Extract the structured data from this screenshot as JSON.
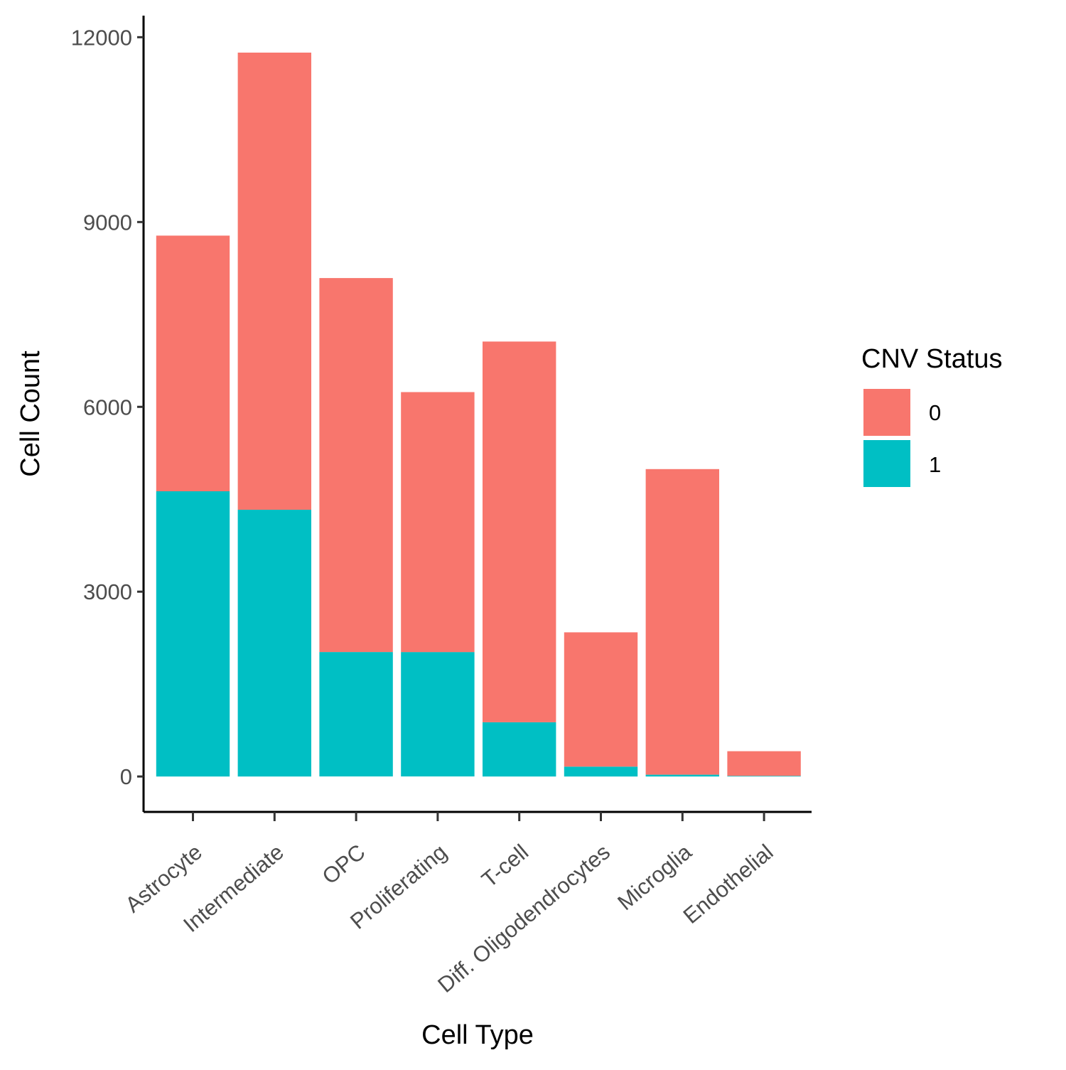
{
  "chart_data": {
    "type": "bar",
    "stacked": true,
    "categories": [
      "Astrocyte",
      "Intermediate",
      "OPC",
      "Proliferating",
      "T-cell",
      "Diff. Oligodendrocytes",
      "Microglia",
      "Endothelial"
    ],
    "series": [
      {
        "name": "0",
        "color": "#F8766D",
        "values": [
          4150,
          7420,
          6070,
          4220,
          6180,
          2180,
          4960,
          400
        ]
      },
      {
        "name": "1",
        "color": "#00BFC4",
        "values": [
          4630,
          4330,
          2020,
          2020,
          880,
          160,
          30,
          10
        ]
      }
    ],
    "xlabel": "Cell Type",
    "ylabel": "Cell Count",
    "yticks": [
      "0",
      "3000",
      "6000",
      "9000",
      "12000"
    ],
    "ytick_values": [
      0,
      3000,
      6000,
      9000,
      12000
    ],
    "ylim": [
      -575,
      12350
    ],
    "legend": {
      "title": "CNV Status",
      "position": "right",
      "entries": [
        "0",
        "1"
      ]
    },
    "grid": false
  }
}
